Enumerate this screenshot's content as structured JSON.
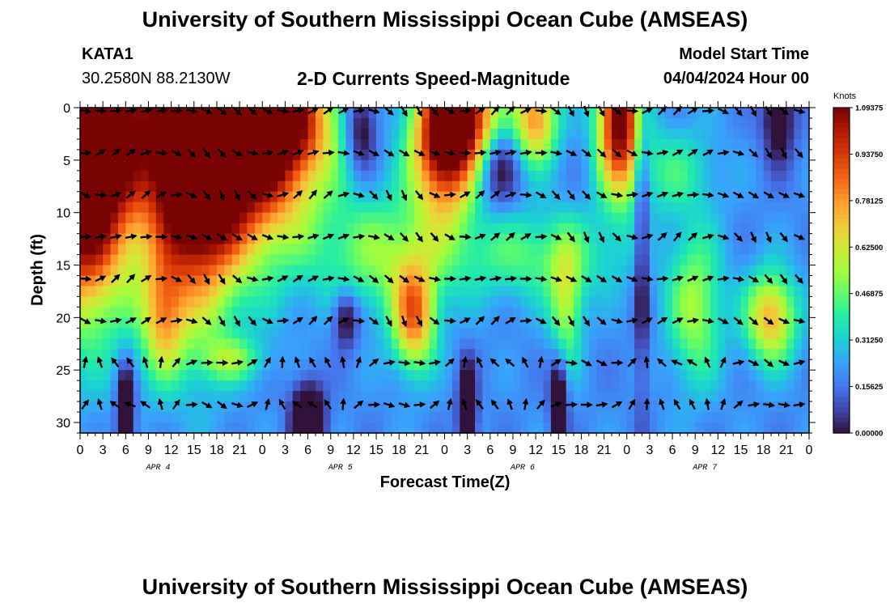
{
  "title": "University of Southern Mississippi Ocean Cube (AMSEAS)",
  "station": {
    "name": "KATA1",
    "location": "30.2580N  88.2130W"
  },
  "model_start": {
    "label": "Model Start Time",
    "value": "04/04/2024 Hour 00"
  },
  "chart_data": {
    "type": "heatmap",
    "title": "2-D Currents Speed-Magnitude",
    "xlabel": "Forecast Time(Z)",
    "ylabel": "Depth (ft)",
    "x_ticks": [
      "0",
      "3",
      "6",
      "9",
      "12",
      "15",
      "18",
      "21",
      "0",
      "3",
      "6",
      "9",
      "12",
      "15",
      "18",
      "21",
      "0",
      "3",
      "6",
      "9",
      "12",
      "15",
      "18",
      "21",
      "0",
      "3",
      "6",
      "9",
      "12",
      "15",
      "18",
      "21",
      "0"
    ],
    "x_range_hours": [
      0,
      96
    ],
    "date_labels": [
      {
        "label": "APR 4",
        "hour": 9
      },
      {
        "label": "APR 5",
        "hour": 33
      },
      {
        "label": "APR 6",
        "hour": 57
      },
      {
        "label": "APR 7",
        "hour": 81
      }
    ],
    "y_ticks": [
      0,
      5,
      10,
      15,
      20,
      25,
      30
    ],
    "ylim": [
      0,
      31
    ],
    "colorbar": {
      "unit": "Knots",
      "min": 0.0,
      "max": 1.09375,
      "tick_labels": [
        "1.09375",
        "0.93750",
        "0.78125",
        "0.62500",
        "0.46875",
        "0.31250",
        "0.15625",
        "0.00000"
      ],
      "colors": [
        "#30123b",
        "#4145ab",
        "#4675ed",
        "#39a2fc",
        "#1bcfd4",
        "#24eca6",
        "#61fc6c",
        "#a4fc3b",
        "#d1e834",
        "#f3c63a",
        "#fe9b2d",
        "#f36315",
        "#d93806",
        "#b11901",
        "#7a0403"
      ]
    },
    "vector_depths_ft": [
      0,
      4,
      8,
      12,
      16,
      20,
      24,
      28
    ],
    "vector_interval_hours": 2
  },
  "bottom_title": "University of Southern Mississippi Ocean Cube (AMSEAS)"
}
